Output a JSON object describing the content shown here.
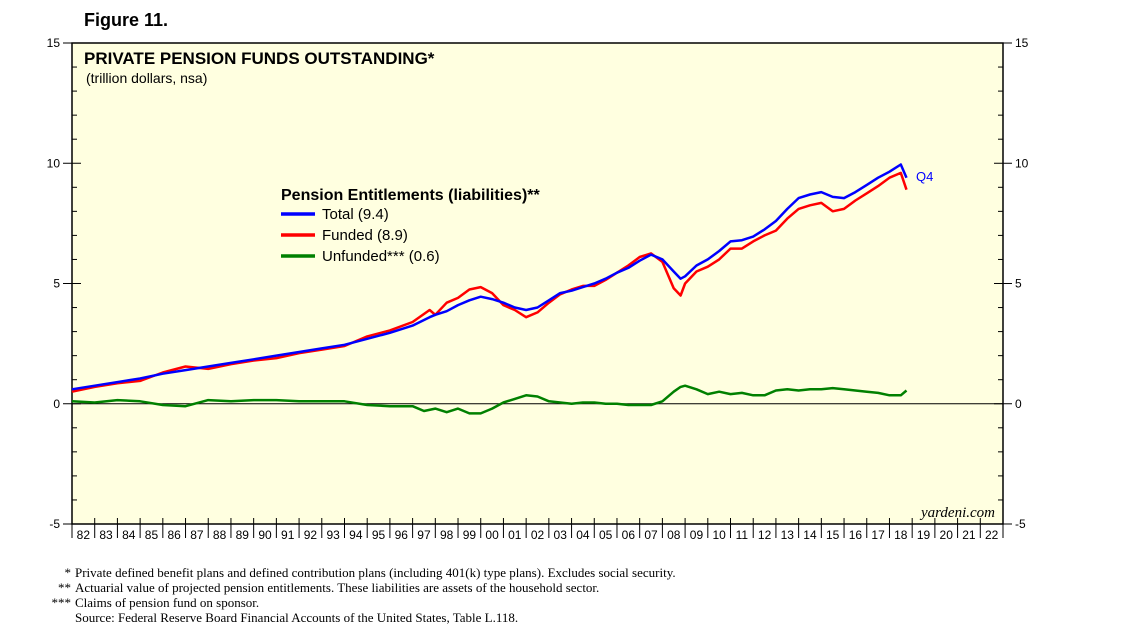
{
  "figure_label": "Figure 11.",
  "chart_data": {
    "type": "line",
    "title": "PRIVATE PENSION FUNDS OUTSTANDING*",
    "subtitle": "(trillion dollars, nsa)",
    "ylim": [
      -5,
      15
    ],
    "y_ticks": [
      -5,
      0,
      5,
      10,
      15
    ],
    "xlim": [
      1982,
      2023
    ],
    "x_tick_labels": [
      "82",
      "83",
      "84",
      "85",
      "86",
      "87",
      "88",
      "89",
      "90",
      "91",
      "92",
      "93",
      "94",
      "95",
      "96",
      "97",
      "98",
      "99",
      "00",
      "01",
      "02",
      "03",
      "04",
      "05",
      "06",
      "07",
      "08",
      "09",
      "10",
      "11",
      "12",
      "13",
      "14",
      "15",
      "16",
      "17",
      "18",
      "19",
      "20",
      "21",
      "22"
    ],
    "legend_title": "Pension Entitlements (liabilities)**",
    "end_label": "Q4",
    "watermark": "yardeni.com",
    "series": [
      {
        "name": "Total (9.4)",
        "color": "#0000ff",
        "x": [
          1982.0,
          1983.0,
          1984.0,
          1985.0,
          1986.0,
          1987.0,
          1988.0,
          1989.0,
          1990.0,
          1991.0,
          1992.0,
          1993.0,
          1994.0,
          1995.0,
          1996.0,
          1997.0,
          1997.75,
          1998.0,
          1998.5,
          1999.0,
          1999.5,
          2000.0,
          2000.5,
          2001.0,
          2001.5,
          2002.0,
          2002.5,
          2003.0,
          2003.5,
          2004.0,
          2004.5,
          2005.0,
          2005.5,
          2006.0,
          2006.5,
          2007.0,
          2007.5,
          2008.0,
          2008.5,
          2008.8,
          2009.0,
          2009.5,
          2010.0,
          2010.5,
          2011.0,
          2011.5,
          2012.0,
          2012.5,
          2013.0,
          2013.5,
          2014.0,
          2014.5,
          2015.0,
          2015.5,
          2016.0,
          2016.5,
          2017.0,
          2017.5,
          2018.0,
          2018.5,
          2018.75
        ],
        "values": [
          0.6,
          0.75,
          0.9,
          1.05,
          1.25,
          1.4,
          1.55,
          1.7,
          1.85,
          2.0,
          2.15,
          2.3,
          2.45,
          2.7,
          2.95,
          3.25,
          3.6,
          3.7,
          3.85,
          4.1,
          4.3,
          4.45,
          4.35,
          4.2,
          4.0,
          3.9,
          4.0,
          4.3,
          4.6,
          4.7,
          4.85,
          5.0,
          5.2,
          5.45,
          5.65,
          5.95,
          6.2,
          6.0,
          5.5,
          5.2,
          5.3,
          5.75,
          6.0,
          6.35,
          6.75,
          6.8,
          6.95,
          7.25,
          7.6,
          8.1,
          8.55,
          8.7,
          8.8,
          8.6,
          8.55,
          8.8,
          9.1,
          9.4,
          9.65,
          9.95,
          9.4
        ]
      },
      {
        "name": "Funded (8.9)",
        "color": "#ff0000",
        "x": [
          1982.0,
          1983.0,
          1984.0,
          1985.0,
          1986.0,
          1987.0,
          1988.0,
          1989.0,
          1990.0,
          1991.0,
          1992.0,
          1993.0,
          1994.0,
          1995.0,
          1996.0,
          1997.0,
          1997.75,
          1998.0,
          1998.5,
          1999.0,
          1999.5,
          2000.0,
          2000.5,
          2001.0,
          2001.5,
          2002.0,
          2002.5,
          2003.0,
          2003.5,
          2004.0,
          2004.5,
          2005.0,
          2005.5,
          2006.0,
          2006.5,
          2007.0,
          2007.5,
          2008.0,
          2008.5,
          2008.8,
          2009.0,
          2009.5,
          2010.0,
          2010.5,
          2011.0,
          2011.5,
          2012.0,
          2012.5,
          2013.0,
          2013.5,
          2014.0,
          2014.5,
          2015.0,
          2015.5,
          2016.0,
          2016.5,
          2017.0,
          2017.5,
          2018.0,
          2018.5,
          2018.75
        ],
        "values": [
          0.5,
          0.7,
          0.85,
          0.95,
          1.3,
          1.55,
          1.45,
          1.65,
          1.8,
          1.9,
          2.1,
          2.25,
          2.4,
          2.8,
          3.05,
          3.4,
          3.9,
          3.7,
          4.2,
          4.4,
          4.75,
          4.85,
          4.6,
          4.1,
          3.9,
          3.6,
          3.8,
          4.2,
          4.55,
          4.75,
          4.9,
          4.9,
          5.15,
          5.45,
          5.75,
          6.1,
          6.25,
          5.9,
          4.8,
          4.5,
          5.0,
          5.5,
          5.7,
          6.0,
          6.45,
          6.45,
          6.75,
          7.0,
          7.2,
          7.7,
          8.1,
          8.25,
          8.35,
          8.0,
          8.1,
          8.45,
          8.75,
          9.05,
          9.4,
          9.6,
          8.9
        ]
      },
      {
        "name": "Unfunded*** (0.6)",
        "color": "#008000",
        "x": [
          1982.0,
          1983.0,
          1984.0,
          1985.0,
          1986.0,
          1987.0,
          1988.0,
          1989.0,
          1990.0,
          1991.0,
          1992.0,
          1993.0,
          1994.0,
          1995.0,
          1996.0,
          1997.0,
          1997.5,
          1998.0,
          1998.5,
          1999.0,
          1999.5,
          2000.0,
          2000.5,
          2001.0,
          2001.5,
          2002.0,
          2002.5,
          2003.0,
          2003.5,
          2004.0,
          2004.5,
          2005.0,
          2005.5,
          2006.0,
          2006.5,
          2007.0,
          2007.5,
          2008.0,
          2008.5,
          2008.8,
          2009.0,
          2009.5,
          2010.0,
          2010.5,
          2011.0,
          2011.5,
          2012.0,
          2012.5,
          2013.0,
          2013.5,
          2014.0,
          2014.5,
          2015.0,
          2015.5,
          2016.0,
          2016.5,
          2017.0,
          2017.5,
          2018.0,
          2018.5,
          2018.75
        ],
        "values": [
          0.1,
          0.05,
          0.15,
          0.1,
          -0.05,
          -0.1,
          0.15,
          0.1,
          0.15,
          0.15,
          0.1,
          0.1,
          0.1,
          -0.05,
          -0.1,
          -0.1,
          -0.3,
          -0.2,
          -0.35,
          -0.2,
          -0.4,
          -0.4,
          -0.2,
          0.05,
          0.2,
          0.35,
          0.3,
          0.1,
          0.05,
          0.0,
          0.05,
          0.05,
          0.0,
          0.0,
          -0.05,
          -0.05,
          -0.05,
          0.1,
          0.5,
          0.7,
          0.75,
          0.6,
          0.4,
          0.5,
          0.4,
          0.45,
          0.35,
          0.35,
          0.55,
          0.6,
          0.55,
          0.6,
          0.6,
          0.65,
          0.6,
          0.55,
          0.5,
          0.45,
          0.35,
          0.35,
          0.55
        ]
      }
    ]
  },
  "footnotes": [
    {
      "mark": "*",
      "text": "Private defined benefit plans and defined contribution plans (including 401(k) type plans). Excludes social security."
    },
    {
      "mark": "**",
      "text": "Actuarial value of projected pension entitlements. These liabilities are assets of the household sector."
    },
    {
      "mark": "***",
      "text": "Claims of pension fund on sponsor."
    },
    {
      "mark": "",
      "text": "Source: Federal Reserve Board Financial Accounts of the United States, Table L.118."
    }
  ]
}
